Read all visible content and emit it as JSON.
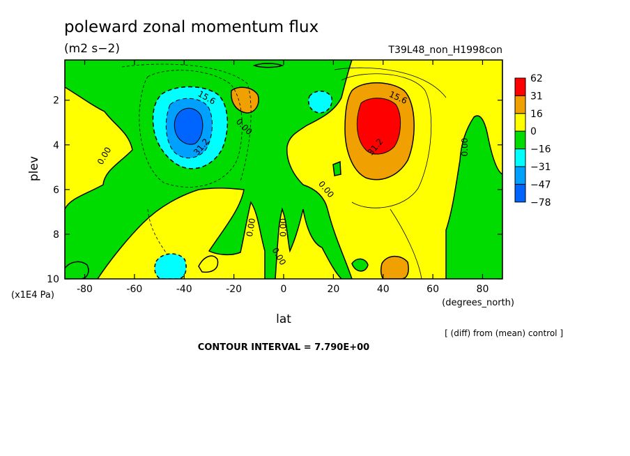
{
  "chart_data": {
    "type": "heatmap",
    "title": "poleward zonal momentum flux",
    "units": "(m2 s−2)",
    "run_label": "T39L48_non_H1998con",
    "xlabel": "lat",
    "x_units": "(degrees_north)",
    "ylabel": "plev",
    "y_units": "(x1E4 Pa)",
    "xlim": [
      -88,
      88
    ],
    "ylim": [
      10,
      0.2
    ],
    "x_ticks": [
      -80,
      -60,
      -40,
      -20,
      0,
      20,
      40,
      60,
      80
    ],
    "y_ticks": [
      2,
      4,
      6,
      8,
      10
    ],
    "legend": {
      "placement": "right",
      "labels": [
        "62",
        "31",
        "16",
        "0",
        "−16",
        "−31",
        "−47",
        "−78"
      ],
      "colors": [
        "#ff0000",
        "#f0a000",
        "#ffff00",
        "#00dc00",
        "#00ffff",
        "#00a0ff",
        "#0064ff"
      ]
    },
    "contour_labels": [
      {
        "text": "15.6",
        "lat": -31,
        "plev": 1.9,
        "angle": 30
      },
      {
        "text": "31.2",
        "lat": -33,
        "plev": 4.1,
        "angle": -50
      },
      {
        "text": "0.00",
        "lat": -16,
        "plev": 3.2,
        "angle": 45
      },
      {
        "text": "0.00",
        "lat": -72,
        "plev": 4.5,
        "angle": -60
      },
      {
        "text": "0.00",
        "lat": -13,
        "plev": 7.7,
        "angle": -80
      },
      {
        "text": "0.00",
        "lat": 0,
        "plev": 7.7,
        "angle": -90
      },
      {
        "text": "0.00",
        "lat": -2,
        "plev": 9.0,
        "angle": 60
      },
      {
        "text": "0.00",
        "lat": 17,
        "plev": 6.0,
        "angle": 50
      },
      {
        "text": "15.6",
        "lat": 46,
        "plev": 1.9,
        "angle": 25
      },
      {
        "text": "31.2",
        "lat": 37,
        "plev": 4.1,
        "angle": -50
      },
      {
        "text": "0.00",
        "lat": 73,
        "plev": 4.1,
        "angle": -90
      }
    ],
    "field_features": [
      {
        "sign": "negative",
        "lat": -38,
        "plev": 3.0,
        "min": -78,
        "extent_lat": 26,
        "extent_plev": 4.6
      },
      {
        "sign": "positive",
        "lat": 38,
        "plev": 3.0,
        "max": 62,
        "extent_lat": 26,
        "extent_plev": 4.6
      },
      {
        "sign": "positive",
        "lat": -15,
        "plev": 2.0,
        "max": 31
      },
      {
        "sign": "negative",
        "lat": 15,
        "plev": 2.0,
        "min": -31
      },
      {
        "sign": "negative",
        "lat": -40,
        "plev": 9.4,
        "min": -31
      },
      {
        "sign": "positive",
        "lat": 42,
        "plev": 9.4,
        "max": 31
      }
    ],
    "grid": false
  },
  "footer": {
    "note": "[ (diff) from (mean) control ]",
    "contour_interval": "CONTOUR INTERVAL = 7.790E+00"
  }
}
